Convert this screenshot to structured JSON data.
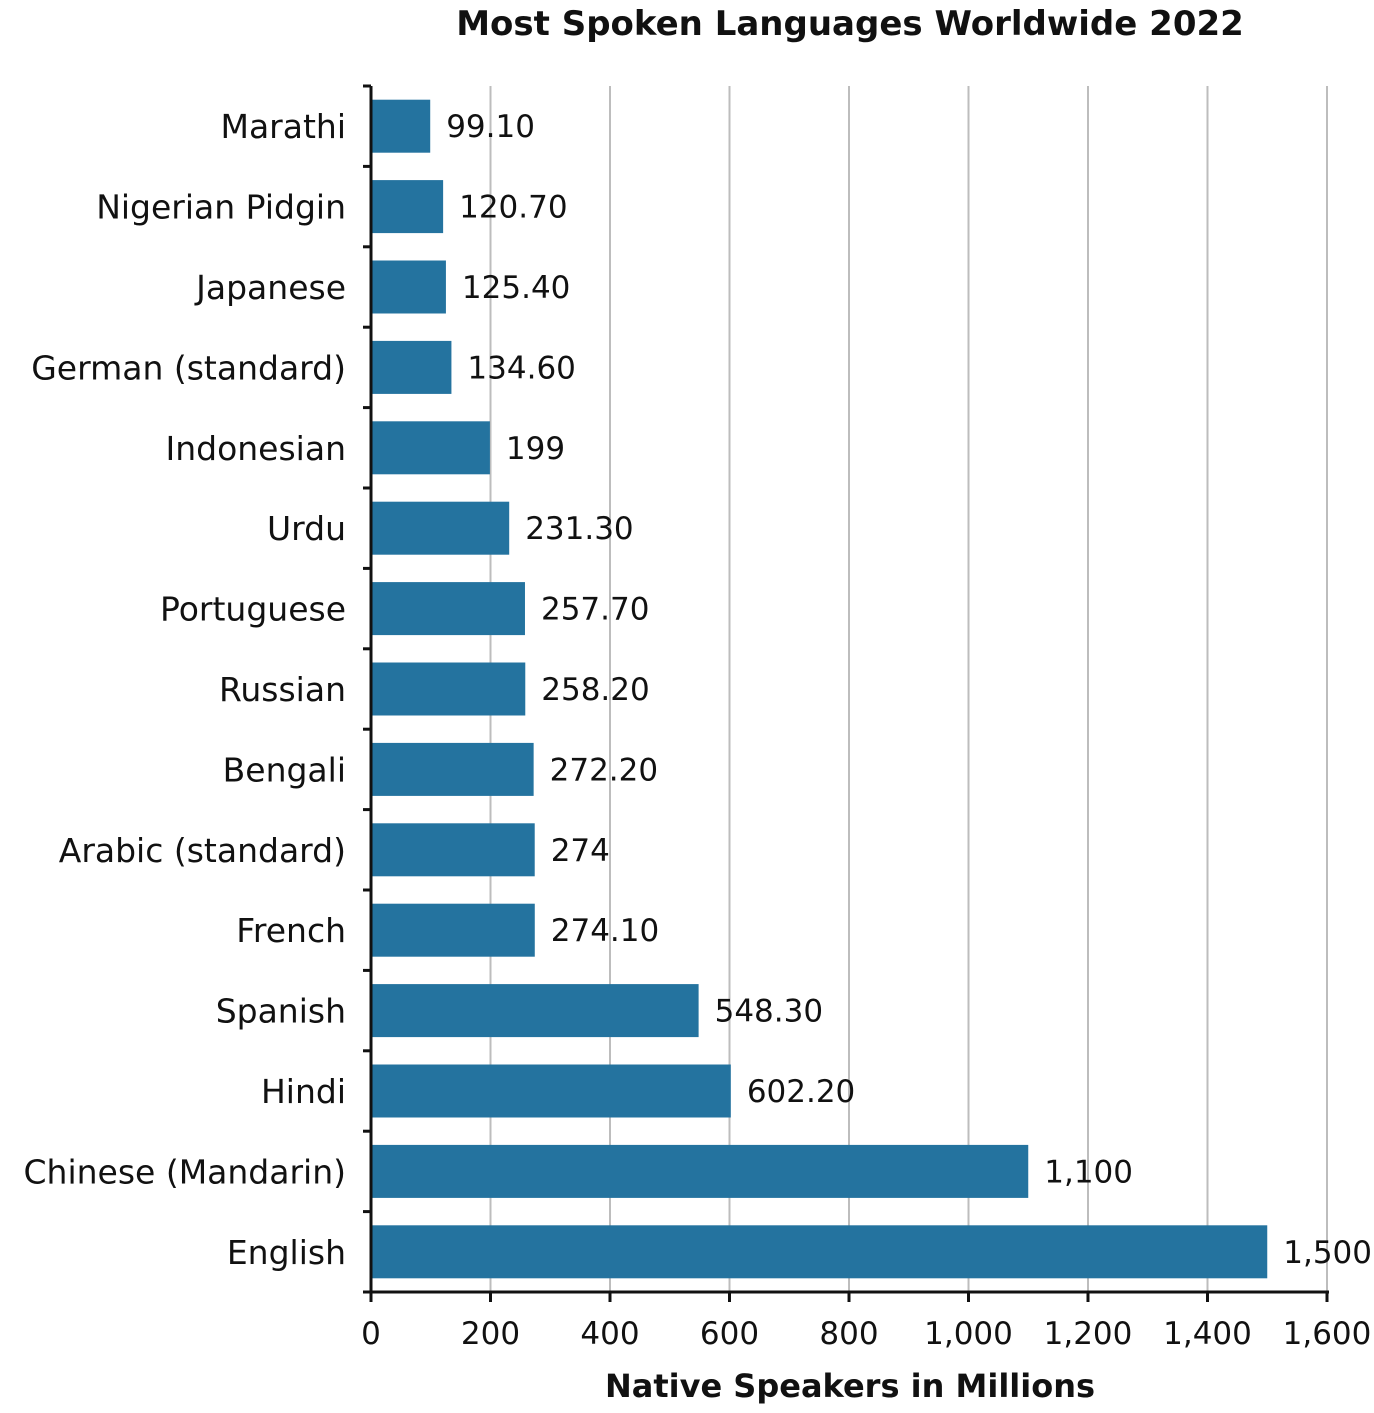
{
  "chart_data": {
    "type": "bar",
    "orientation": "horizontal",
    "title": "Most Spoken Languages Worldwide 2022",
    "xlabel": "Native Speakers in Millions",
    "ylabel": "",
    "xlim": [
      0,
      1600
    ],
    "xticks": [
      0,
      200,
      400,
      600,
      800,
      1000,
      1200,
      1400,
      1600
    ],
    "xtick_labels": [
      "0",
      "200",
      "400",
      "600",
      "800",
      "1,000",
      "1,200",
      "1,400",
      "1,600"
    ],
    "grid": "vertical",
    "bar_color": "#24739f",
    "categories": [
      "Marathi",
      "Nigerian Pidgin",
      "Japanese",
      "German (standard)",
      "Indonesian",
      "Urdu",
      "Portuguese",
      "Russian",
      "Bengali",
      "Arabic (standard)",
      "French",
      "Spanish",
      "Hindi",
      "Chinese (Mandarin)",
      "English"
    ],
    "values": [
      99.1,
      120.7,
      125.4,
      134.6,
      199,
      231.3,
      257.7,
      258.2,
      272.2,
      274,
      274.1,
      548.3,
      602.2,
      1100,
      1500
    ],
    "value_labels": [
      "99.10",
      "120.70",
      "125.40",
      "134.60",
      "199",
      "231.30",
      "257.70",
      "258.20",
      "272.20",
      "274",
      "274.10",
      "548.30",
      "602.20",
      "1,100",
      "1,500"
    ]
  }
}
